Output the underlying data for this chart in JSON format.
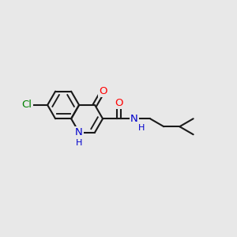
{
  "bg_color": "#e8e8e8",
  "bond_color": "#1a1a1a",
  "bond_width": 1.5,
  "atom_colors": {
    "O": "#ff0000",
    "N": "#0000cc",
    "Cl": "#008000",
    "C": "#1a1a1a"
  },
  "font_size": 8.5,
  "fig_size": [
    3.0,
    3.0
  ],
  "dpi": 100
}
